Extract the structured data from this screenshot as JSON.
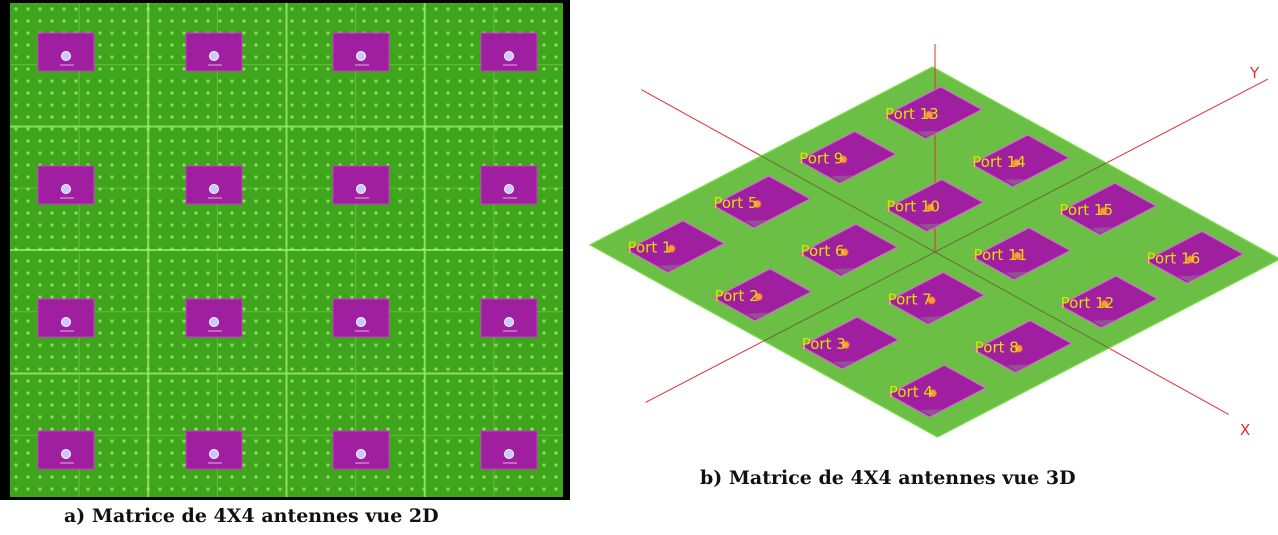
{
  "caption_2d": "a) Matrice de 4X4 antennes vue 2D",
  "caption_3d": "b) Matrice de 4X4 antennes vue 3D",
  "axes": {
    "x": "X",
    "y": "Y"
  },
  "array": {
    "rows": 4,
    "cols": 4
  },
  "ports": [
    "Port 1",
    "Port 2",
    "Port 3",
    "Port 4",
    "Port 5",
    "Port 6",
    "Port 7",
    "Port 8",
    "Port 9",
    "Port 10",
    "Port 11",
    "Port 12",
    "Port 13",
    "Port 14",
    "Port 15",
    "Port 16"
  ],
  "colors": {
    "substrate": "#3fa51d",
    "substrate_3d": "#6bbf45",
    "patch": "#a01fa0",
    "border": "#000000",
    "axis": "#e03030",
    "label": "#e0e000"
  }
}
